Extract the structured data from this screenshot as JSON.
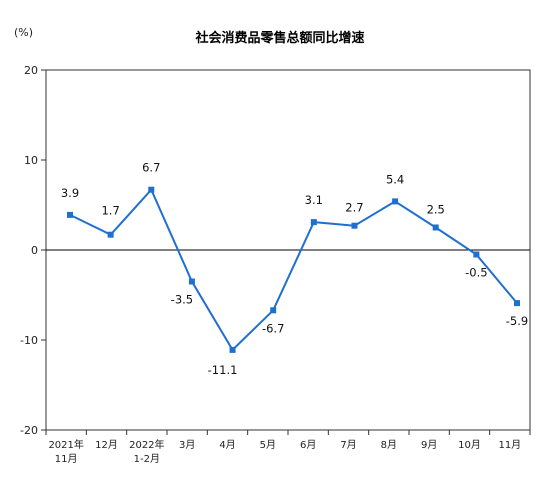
{
  "chart_data": {
    "type": "line",
    "title": "社会消费品零售总额同比增速",
    "unit": "(%)",
    "categories": [
      [
        "2021年",
        "11月"
      ],
      [
        "12月"
      ],
      [
        "2022年",
        "1-2月"
      ],
      [
        "3月"
      ],
      [
        "4月"
      ],
      [
        "5月"
      ],
      [
        "6月"
      ],
      [
        "7月"
      ],
      [
        "8月"
      ],
      [
        "9月"
      ],
      [
        "10月"
      ],
      [
        "11月"
      ]
    ],
    "values": [
      3.9,
      1.7,
      6.7,
      -3.5,
      -11.1,
      -6.7,
      3.1,
      2.7,
      5.4,
      2.5,
      -0.5,
      -5.9
    ],
    "data_labels": [
      "3.9",
      "1.7",
      "6.7",
      "-3.5",
      "-11.1",
      "-6.7",
      "3.1",
      "2.7",
      "5.4",
      "2.5",
      "-0.5",
      "-5.9"
    ],
    "y_ticks": [
      "20",
      "10",
      "0",
      "-10",
      "-20"
    ],
    "ylim": [
      -20,
      20
    ],
    "grid": false,
    "line_color": "#1f6fd0",
    "marker": "square"
  }
}
